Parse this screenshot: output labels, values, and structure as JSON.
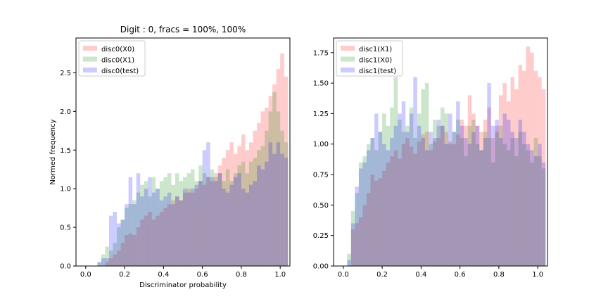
{
  "chart_data": [
    {
      "type": "histogram",
      "title": "Digit : 0, fracs = 100%, 100%",
      "xlabel": "Discriminator probability",
      "ylabel": "Normed frequency",
      "xlim": [
        -0.05,
        1.05
      ],
      "ylim": [
        0,
        2.95
      ],
      "xticks": [
        "0.0",
        "0.2",
        "0.4",
        "0.6",
        "0.8",
        "1.0"
      ],
      "yticks": [
        "0.0",
        "0.5",
        "1.0",
        "1.5",
        "2.0",
        "2.5"
      ],
      "bin_start": 0.04,
      "bin_width": 0.02,
      "legend_position": "top-left",
      "series": [
        {
          "name": "disc0(X0)",
          "color": "#ff0000",
          "values": [
            0,
            0,
            0,
            0.05,
            0.1,
            0.15,
            0.2,
            0.3,
            0.4,
            0.42,
            0.4,
            0.5,
            0.6,
            0.65,
            0.7,
            0.6,
            0.65,
            0.7,
            0.75,
            0.8,
            0.85,
            0.9,
            0.85,
            0.95,
            1.0,
            0.95,
            1.0,
            1.1,
            1.05,
            1.15,
            1.1,
            1.2,
            1.3,
            1.4,
            1.5,
            1.6,
            1.45,
            1.55,
            1.7,
            1.5,
            1.6,
            1.75,
            1.85,
            2.0,
            2.05,
            2.2,
            2.35,
            2.55,
            2.75,
            2.45
          ]
        },
        {
          "name": "disc0(X1)",
          "color": "#008000",
          "values": [
            0,
            0.05,
            0.15,
            0.25,
            0.2,
            0.3,
            0.5,
            0.6,
            0.75,
            0.8,
            0.85,
            0.95,
            1.05,
            1.1,
            0.9,
            1.15,
            1.0,
            1.1,
            1.15,
            1.2,
            1.05,
            1.2,
            1.1,
            1.15,
            1.2,
            1.25,
            1.1,
            1.3,
            1.2,
            1.15,
            1.25,
            1.15,
            1.2,
            1.1,
            1.25,
            1.1,
            1.2,
            1.3,
            1.35,
            1.2,
            1.35,
            1.4,
            1.5,
            1.55,
            1.75,
            2.0,
            2.25,
            2.0,
            1.75,
            1.6
          ]
        },
        {
          "name": "disc0(test)",
          "color": "#0000ff",
          "values": [
            0,
            0.05,
            0.1,
            0.1,
            0.65,
            0.7,
            0.55,
            0.6,
            0.8,
            1.15,
            0.8,
            1.2,
            0.9,
            1.0,
            1.15,
            0.95,
            1.0,
            0.85,
            0.9,
            0.95,
            0.8,
            0.9,
            0.85,
            1.0,
            0.95,
            1.0,
            1.05,
            1.1,
            1.5,
            1.6,
            1.15,
            1.1,
            1.2,
            1.0,
            0.95,
            1.05,
            1.15,
            1.2,
            1.0,
            0.95,
            1.05,
            1.1,
            1.3,
            1.25,
            1.35,
            1.6,
            1.45,
            1.6,
            1.45,
            1.4
          ]
        }
      ]
    },
    {
      "type": "histogram",
      "title": "",
      "xlabel": "",
      "ylabel": "",
      "xlim": [
        -0.05,
        1.05
      ],
      "ylim": [
        0,
        1.87
      ],
      "xticks": [
        "0.0",
        "0.2",
        "0.4",
        "0.6",
        "0.8",
        "1.0"
      ],
      "yticks": [
        "0.00",
        "0.25",
        "0.50",
        "0.75",
        "1.00",
        "1.25",
        "1.50",
        "1.75"
      ],
      "bin_start": 0.02,
      "bin_width": 0.02,
      "legend_position": "top-left",
      "series": [
        {
          "name": "disc1(X1)",
          "color": "#ff0000",
          "values": [
            0,
            0.3,
            0.35,
            0.4,
            0.5,
            0.6,
            0.75,
            0.7,
            0.72,
            0.78,
            0.85,
            0.9,
            0.95,
            0.88,
            1.0,
            1.05,
            0.98,
            0.92,
            1.02,
            1.08,
            1.1,
            0.95,
            1.02,
            1.05,
            1.15,
            1.1,
            1.02,
            1.0,
            1.08,
            1.2,
            1.15,
            1.4,
            1.25,
            1.15,
            1.1,
            1.2,
            1.3,
            1.05,
            1.15,
            1.4,
            1.5,
            1.35,
            1.55,
            1.45,
            1.65,
            1.6,
            1.8,
            1.75,
            1.6,
            1.55,
            1.45
          ]
        },
        {
          "name": "disc1(X0)",
          "color": "#008000",
          "values": [
            0.1,
            0.45,
            0.6,
            0.85,
            0.9,
            1.0,
            1.05,
            0.95,
            1.1,
            1.25,
            1.15,
            1.3,
            1.55,
            1.2,
            1.1,
            1.15,
            1.3,
            1.05,
            1.25,
            1.45,
            1.5,
            1.0,
            1.2,
            1.15,
            1.3,
            1.25,
            1.0,
            1.1,
            1.2,
            1.05,
            0.9,
            1.15,
            1.2,
            1.0,
            0.95,
            1.1,
            1.05,
            0.85,
            1.1,
            1.15,
            1.0,
            0.95,
            1.05,
            0.9,
            1.1,
            1.0,
            0.95,
            0.85,
            1.05,
            0.9,
            0.8
          ]
        },
        {
          "name": "disc1(test)",
          "color": "#0000ff",
          "values": [
            0.05,
            0.35,
            0.65,
            0.8,
            0.85,
            0.95,
            1.05,
            1.25,
            1.1,
            1.0,
            0.95,
            1.05,
            1.15,
            1.25,
            1.35,
            1.1,
            1.25,
            1.55,
            1.15,
            1.05,
            0.95,
            1.1,
            1.05,
            1.2,
            1.15,
            1.0,
            1.25,
            1.1,
            1.35,
            1.15,
            1.05,
            1.0,
            1.1,
            1.15,
            0.95,
            1.05,
            1.5,
            1.15,
            1.2,
            1.05,
            1.25,
            1.2,
            1.1,
            1.05,
            1.2,
            1.1,
            1.0,
            0.95,
            0.9,
            1.0,
            0.85
          ]
        }
      ]
    }
  ]
}
